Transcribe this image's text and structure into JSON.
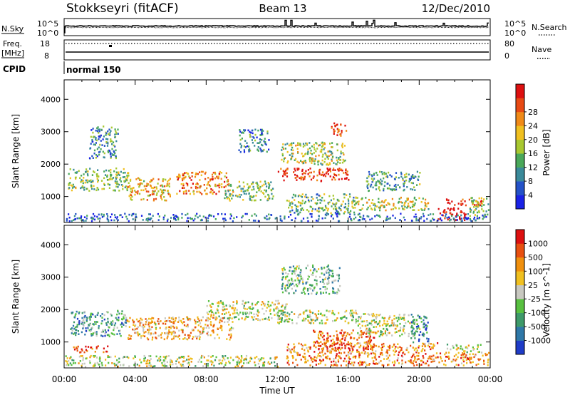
{
  "header": {
    "station": "Stokkseyri (fitACF)",
    "beam": "Beam 13",
    "date": "12/Dec/2010"
  },
  "strips": {
    "nsky_label": "N.Sky",
    "nsky_top": "10^5",
    "nsky_bottom": "10^0",
    "nsearch_label": "N.Search",
    "nsearch_top": "10^5",
    "nsearch_bottom": "10^0",
    "freq_label": "Freq.",
    "freq_unit": "[MHz]",
    "freq_top": "18",
    "freq_bottom": "8",
    "nave_label": "Nave",
    "nave_top": "80",
    "nave_bottom": "0",
    "cpid_label": "CPID",
    "cpid_value": "normal 150"
  },
  "chart_data": [
    {
      "type": "heatmap",
      "title": "Power",
      "ylabel": "Slant Range [km]",
      "xlabel": "Time UT",
      "ylim": [
        200,
        4600
      ],
      "yticks": [
        "1000",
        "2000",
        "3000",
        "4000"
      ],
      "xticks": [
        "00:00",
        "04:00",
        "08:00",
        "12:00",
        "16:00",
        "20:00",
        "00:00"
      ],
      "colorbar_label": "Power [dB]",
      "colorbar_ticks": [
        "4",
        "8",
        "12",
        "16",
        "20",
        "24",
        "28"
      ],
      "colorbar_colors": [
        "#1a22e6",
        "#2452c8",
        "#3a8a9a",
        "#4aa85a",
        "#a8c830",
        "#f0c020",
        "#f08a18",
        "#e84a14",
        "#dd1010"
      ],
      "blobs": [
        {
          "t0": 0.2,
          "t1": 3.6,
          "r0": 1200,
          "r1": 1900,
          "level": 0.45
        },
        {
          "t0": 1.4,
          "t1": 3.0,
          "r0": 2200,
          "r1": 3200,
          "level": 0.3
        },
        {
          "t0": 3.5,
          "t1": 6.0,
          "r0": 900,
          "r1": 1600,
          "level": 0.65
        },
        {
          "t0": 6.3,
          "t1": 9.2,
          "r0": 1100,
          "r1": 1800,
          "level": 0.75
        },
        {
          "t0": 9.0,
          "t1": 11.8,
          "r0": 900,
          "r1": 1500,
          "level": 0.45
        },
        {
          "t0": 9.8,
          "t1": 11.5,
          "r0": 2400,
          "r1": 3100,
          "level": 0.25
        },
        {
          "t0": 12.0,
          "t1": 16.0,
          "r0": 1500,
          "r1": 1900,
          "level": 0.9
        },
        {
          "t0": 12.2,
          "t1": 15.8,
          "r0": 2000,
          "r1": 2700,
          "level": 0.5
        },
        {
          "t0": 15.0,
          "t1": 15.9,
          "r0": 2900,
          "r1": 3300,
          "level": 0.85
        },
        {
          "t0": 12.5,
          "t1": 16.5,
          "r0": 500,
          "r1": 1100,
          "level": 0.4
        },
        {
          "t0": 16.5,
          "t1": 20.5,
          "r0": 600,
          "r1": 1000,
          "level": 0.55
        },
        {
          "t0": 17.0,
          "t1": 20.0,
          "r0": 1200,
          "r1": 1800,
          "level": 0.35
        },
        {
          "t0": 21.0,
          "t1": 22.6,
          "r0": 300,
          "r1": 700,
          "level": 1.0
        },
        {
          "t0": 21.5,
          "t1": 23.6,
          "r0": 750,
          "r1": 950,
          "level": 0.95
        },
        {
          "t0": 22.8,
          "t1": 24.0,
          "r0": 400,
          "r1": 1000,
          "level": 0.45
        },
        {
          "t0": 0.0,
          "t1": 24.0,
          "r0": 200,
          "r1": 500,
          "level": 0.2
        }
      ]
    },
    {
      "type": "heatmap",
      "title": "Velocity",
      "ylabel": "Slant Range [km]",
      "xlabel": "Time UT",
      "ylim": [
        200,
        4600
      ],
      "yticks": [
        "1000",
        "2000",
        "3000",
        "4000"
      ],
      "xticks": [
        "00:00",
        "04:00",
        "08:00",
        "12:00",
        "16:00",
        "20:00",
        "00:00"
      ],
      "colorbar_label": "Velocity [m s^-1]",
      "colorbar_ticks": [
        "1000",
        "500",
        "100",
        "25",
        "-25",
        "-100",
        "-500",
        "-1000"
      ],
      "colorbar_colors": [
        "#1f3cc8",
        "#2f78a8",
        "#3e9a6a",
        "#58c040",
        "#c8c8c0",
        "#f0c020",
        "#f0900e",
        "#e85010",
        "#dd1010"
      ],
      "blobs": [
        {
          "t0": 0.3,
          "t1": 3.5,
          "r0": 1200,
          "r1": 2000,
          "level": 0.3
        },
        {
          "t0": 0.5,
          "t1": 2.5,
          "r0": 700,
          "r1": 900,
          "level": 0.8
        },
        {
          "t0": 3.5,
          "t1": 9.5,
          "r0": 1100,
          "r1": 1800,
          "level": 0.65
        },
        {
          "t0": 8.0,
          "t1": 12.5,
          "r0": 1700,
          "r1": 2300,
          "level": 0.5
        },
        {
          "t0": 12.0,
          "t1": 16.5,
          "r0": 1600,
          "r1": 2000,
          "level": 0.5
        },
        {
          "t0": 12.2,
          "t1": 15.5,
          "r0": 2500,
          "r1": 3400,
          "level": 0.35
        },
        {
          "t0": 14.0,
          "t1": 17.5,
          "r0": 800,
          "r1": 1400,
          "level": 0.8
        },
        {
          "t0": 16.5,
          "t1": 20.0,
          "r0": 1200,
          "r1": 1900,
          "level": 0.5
        },
        {
          "t0": 12.5,
          "t1": 21.0,
          "r0": 300,
          "r1": 1000,
          "level": 0.75
        },
        {
          "t0": 19.5,
          "t1": 20.5,
          "r0": 1000,
          "r1": 1900,
          "level": 0.2
        },
        {
          "t0": 21.0,
          "t1": 24.0,
          "r0": 300,
          "r1": 700,
          "level": 0.75
        },
        {
          "t0": 21.5,
          "t1": 23.5,
          "r0": 700,
          "r1": 950,
          "level": 0.5
        },
        {
          "t0": 0.0,
          "t1": 12.0,
          "r0": 200,
          "r1": 600,
          "level": 0.5
        }
      ]
    }
  ]
}
